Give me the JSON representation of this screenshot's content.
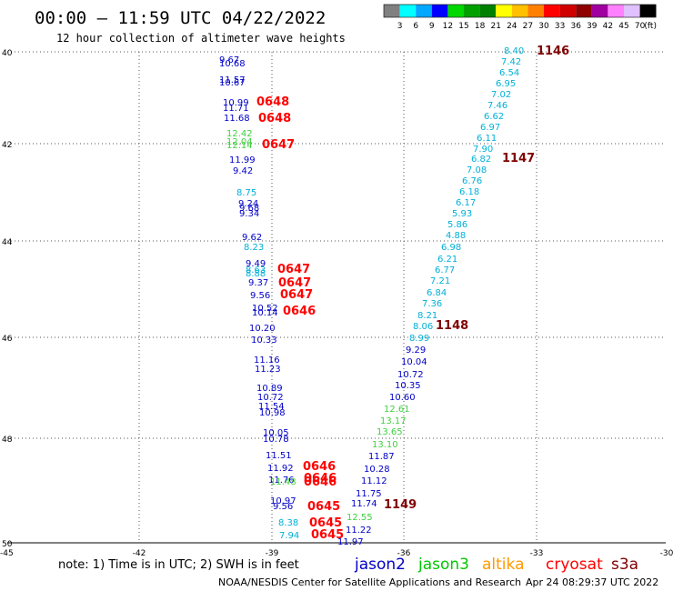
{
  "header": {
    "title": "00:00 – 11:59 UTC 04/22/2022",
    "subtitle": "12 hour collection of altimeter wave heights"
  },
  "legend": {
    "ticks": [
      "3",
      "6",
      "9",
      "12",
      "15",
      "18",
      "21",
      "24",
      "27",
      "30",
      "33",
      "36",
      "39",
      "42",
      "45",
      "70"
    ],
    "unit": "(ft)",
    "colors": [
      "#808080",
      "#00ffff",
      "#00a8ff",
      "#0000ff",
      "#00d800",
      "#00a000",
      "#008000",
      "#ffff00",
      "#ffc000",
      "#ff8000",
      "#ff0000",
      "#d00000",
      "#900000",
      "#a000a0",
      "#ff80ff",
      "#e0c0ff",
      "#000000"
    ]
  },
  "axes": {
    "y_labels": [
      "40",
      "42",
      "44",
      "46",
      "48",
      "50"
    ],
    "x_labels": [
      "-42",
      "-39",
      "-36",
      "-33",
      "-30"
    ],
    "corner_label": "-45"
  },
  "colors": {
    "jason2": "#0000c8",
    "jason3": "#00c800",
    "altika": "#ff9900",
    "cryosat": "#ff0000",
    "s3a": "#800000",
    "cyan": "#00b0d8",
    "ltgreen": "#40d040"
  },
  "observations": [
    {
      "t": "9.67",
      "c": "jason2"
    },
    {
      "t": "10.68",
      "c": "jason2"
    },
    {
      "t": "11.57",
      "c": "jason2"
    },
    {
      "t": "10.67",
      "c": "jason2"
    },
    {
      "t": "10.99",
      "c": "jason2"
    },
    {
      "t": "11.71",
      "c": "jason2"
    },
    {
      "t": "11.68",
      "c": "jason2"
    },
    {
      "t": "12.42",
      "c": "ltgreen"
    },
    {
      "t": "12.04",
      "c": "ltgreen"
    },
    {
      "t": "12.14",
      "c": "ltgreen"
    },
    {
      "t": "11.99",
      "c": "jason2"
    },
    {
      "t": "9.42",
      "c": "jason2"
    },
    {
      "t": "8.75",
      "c": "cyan"
    },
    {
      "t": "9.24",
      "c": "jason2"
    },
    {
      "t": "9.68",
      "c": "jason2"
    },
    {
      "t": "9.34",
      "c": "jason2"
    },
    {
      "t": "9.62",
      "c": "jason2"
    },
    {
      "t": "8.23",
      "c": "cyan"
    },
    {
      "t": "9.49",
      "c": "jason2"
    },
    {
      "t": "8.63",
      "c": "cyan"
    },
    {
      "t": "8.88",
      "c": "cyan"
    },
    {
      "t": "9.37",
      "c": "jason2"
    },
    {
      "t": "9.56",
      "c": "jason2"
    },
    {
      "t": "10.52",
      "c": "jason2"
    },
    {
      "t": "10.14",
      "c": "jason2"
    },
    {
      "t": "10.20",
      "c": "jason2"
    },
    {
      "t": "10.33",
      "c": "jason2"
    },
    {
      "t": "11.16",
      "c": "jason2"
    },
    {
      "t": "11.23",
      "c": "jason2"
    },
    {
      "t": "10.89",
      "c": "jason2"
    },
    {
      "t": "10.72",
      "c": "jason2"
    },
    {
      "t": "11.54",
      "c": "jason2"
    },
    {
      "t": "10.98",
      "c": "jason2"
    },
    {
      "t": "10.05",
      "c": "jason2"
    },
    {
      "t": "10.78",
      "c": "jason2"
    },
    {
      "t": "11.51",
      "c": "jason2"
    },
    {
      "t": "11.92",
      "c": "jason2"
    },
    {
      "t": "11.76",
      "c": "jason2"
    },
    {
      "t": "11.48",
      "c": "ltgreen"
    },
    {
      "t": "10.97",
      "c": "jason2"
    },
    {
      "t": "9.56",
      "c": "jason2"
    },
    {
      "t": "8.38",
      "c": "cyan"
    },
    {
      "t": "7.94",
      "c": "cyan"
    },
    {
      "t": "8.40",
      "c": "cyan"
    },
    {
      "t": "7.42",
      "c": "cyan"
    },
    {
      "t": "6.54",
      "c": "cyan"
    },
    {
      "t": "6.95",
      "c": "cyan"
    },
    {
      "t": "7.02",
      "c": "cyan"
    },
    {
      "t": "7.46",
      "c": "cyan"
    },
    {
      "t": "6.62",
      "c": "cyan"
    },
    {
      "t": "6.97",
      "c": "cyan"
    },
    {
      "t": "6.11",
      "c": "cyan"
    },
    {
      "t": "7.90",
      "c": "cyan"
    },
    {
      "t": "6.82",
      "c": "cyan"
    },
    {
      "t": "7.08",
      "c": "cyan"
    },
    {
      "t": "6.76",
      "c": "cyan"
    },
    {
      "t": "6.18",
      "c": "cyan"
    },
    {
      "t": "6.17",
      "c": "cyan"
    },
    {
      "t": "5.93",
      "c": "cyan"
    },
    {
      "t": "5.86",
      "c": "cyan"
    },
    {
      "t": "4.88",
      "c": "cyan"
    },
    {
      "t": "6.98",
      "c": "cyan"
    },
    {
      "t": "6.21",
      "c": "cyan"
    },
    {
      "t": "6.77",
      "c": "cyan"
    },
    {
      "t": "7.21",
      "c": "cyan"
    },
    {
      "t": "6.84",
      "c": "cyan"
    },
    {
      "t": "7.36",
      "c": "cyan"
    },
    {
      "t": "8.21",
      "c": "cyan"
    },
    {
      "t": "8.06",
      "c": "cyan"
    },
    {
      "t": "8.99",
      "c": "cyan"
    },
    {
      "t": "9.29",
      "c": "jason2"
    },
    {
      "t": "10.04",
      "c": "jason2"
    },
    {
      "t": "10.72",
      "c": "jason2"
    },
    {
      "t": "10.35",
      "c": "jason2"
    },
    {
      "t": "10.60",
      "c": "jason2"
    },
    {
      "t": "12.61",
      "c": "ltgreen"
    },
    {
      "t": "13.17",
      "c": "ltgreen"
    },
    {
      "t": "13.65",
      "c": "ltgreen"
    },
    {
      "t": "13.10",
      "c": "ltgreen"
    },
    {
      "t": "11.87",
      "c": "jason2"
    },
    {
      "t": "10.28",
      "c": "jason2"
    },
    {
      "t": "11.12",
      "c": "jason2"
    },
    {
      "t": "11.75",
      "c": "jason2"
    },
    {
      "t": "11.74",
      "c": "jason2"
    },
    {
      "t": "12.55",
      "c": "ltgreen"
    },
    {
      "t": "11.22",
      "c": "jason2"
    },
    {
      "t": "11.97",
      "c": "jason2"
    }
  ],
  "pass_times": [
    {
      "t": "1146",
      "c": "s3a"
    },
    {
      "t": "0648",
      "c": "cryosat"
    },
    {
      "t": "0648",
      "c": "cryosat"
    },
    {
      "t": "0647",
      "c": "cryosat"
    },
    {
      "t": "1147",
      "c": "s3a"
    },
    {
      "t": "0647",
      "c": "cryosat"
    },
    {
      "t": "0647",
      "c": "cryosat"
    },
    {
      "t": "0647",
      "c": "cryosat"
    },
    {
      "t": "0646",
      "c": "cryosat"
    },
    {
      "t": "1148",
      "c": "s3a"
    },
    {
      "t": "0646",
      "c": "cryosat"
    },
    {
      "t": "0646",
      "c": "cryosat"
    },
    {
      "t": "0646",
      "c": "cryosat"
    },
    {
      "t": "0645",
      "c": "cryosat"
    },
    {
      "t": "1149",
      "c": "s3a"
    },
    {
      "t": "0645",
      "c": "cryosat"
    },
    {
      "t": "0645",
      "c": "cryosat"
    }
  ],
  "footer": {
    "note": "note: 1) Time is in UTC; 2) SWH is in feet",
    "satellites": [
      {
        "name": "jason2",
        "c": "jason2"
      },
      {
        "name": "jason3",
        "c": "jason3"
      },
      {
        "name": "altika",
        "c": "altika"
      },
      {
        "name": "cryosat",
        "c": "cryosat"
      },
      {
        "name": "s3a",
        "c": "s3a"
      }
    ],
    "credit": "NOAA/NESDIS Center for Satellite Applications and Research",
    "timestamp": "Apr 24 08:29:37 UTC 2022"
  }
}
